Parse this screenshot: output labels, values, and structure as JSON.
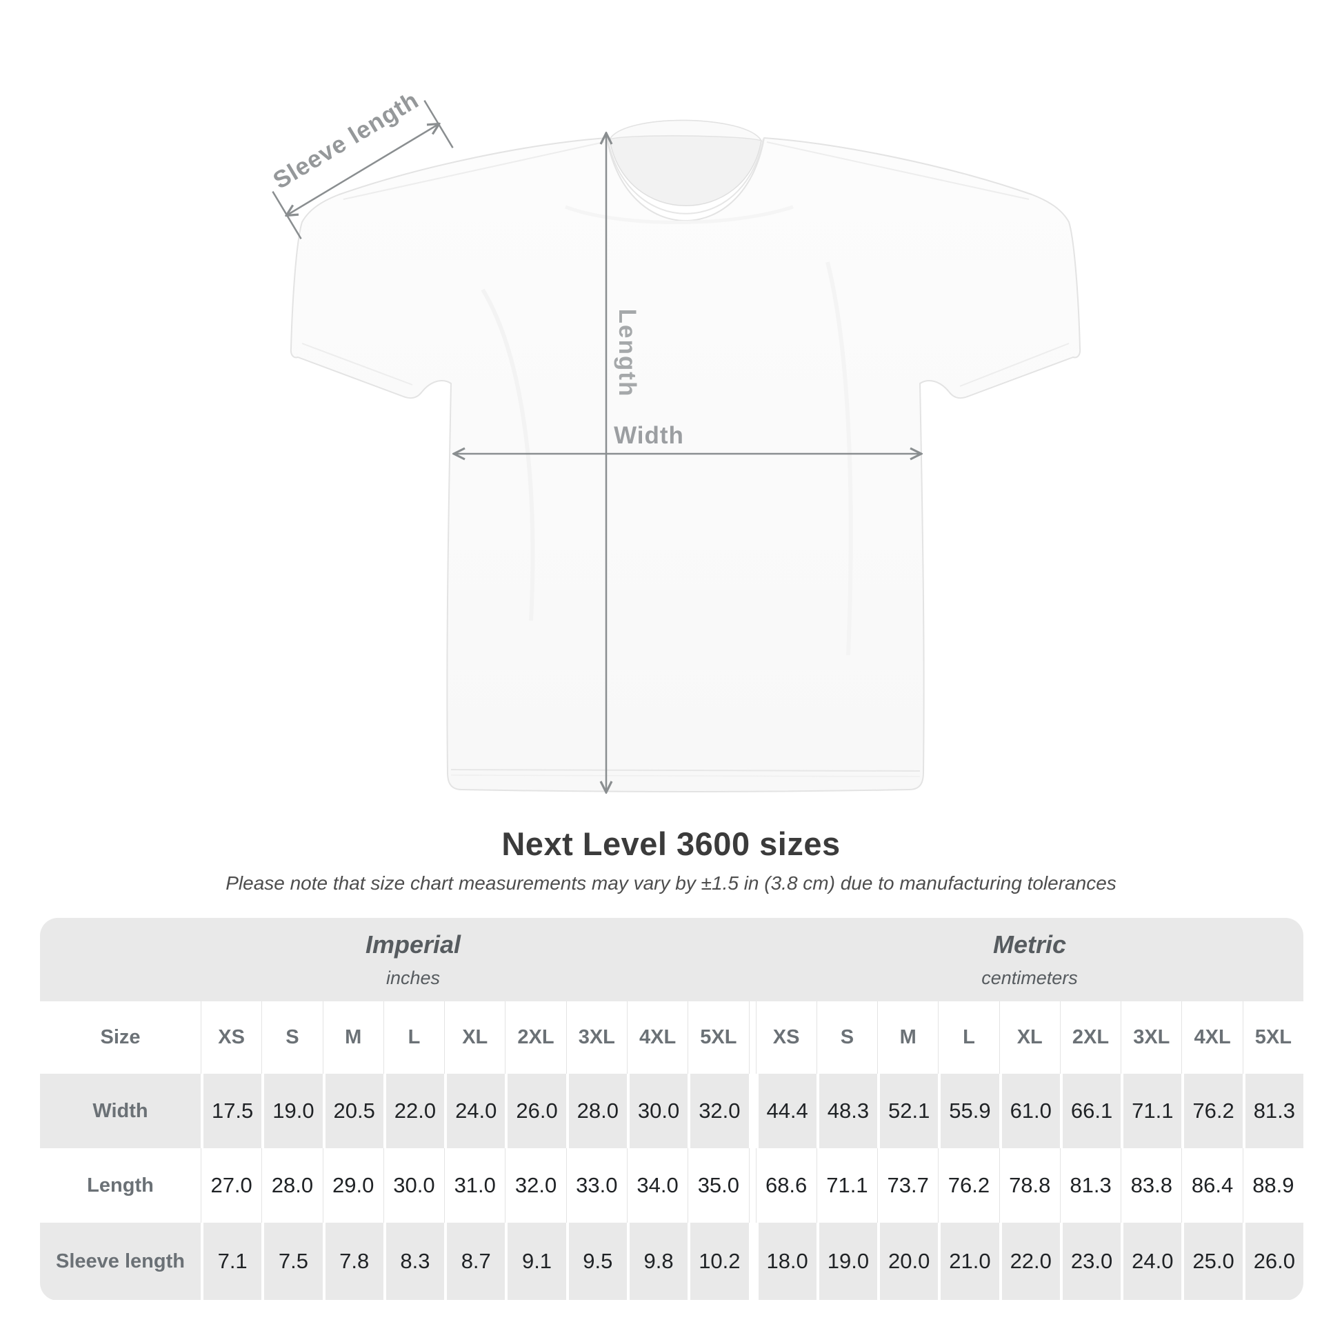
{
  "diagram": {
    "sleeve_label": "Sleeve length",
    "length_label": "Length",
    "width_label": "Width"
  },
  "title": "Next Level 3600 sizes",
  "subtitle": "Please note that size chart measurements may vary by ±1.5 in (3.8 cm) due to manufacturing tolerances",
  "table": {
    "imperial": {
      "title": "Imperial",
      "unit": "inches"
    },
    "metric": {
      "title": "Metric",
      "unit": "centimeters"
    },
    "size_header": "Size",
    "sizes": [
      "XS",
      "S",
      "M",
      "L",
      "XL",
      "2XL",
      "3XL",
      "4XL",
      "5XL",
      "XS",
      "S",
      "M",
      "L",
      "XL",
      "2XL",
      "3XL",
      "4XL",
      "5XL"
    ],
    "rows": [
      {
        "label": "Width",
        "values": [
          "17.5",
          "19.0",
          "20.5",
          "22.0",
          "24.0",
          "26.0",
          "28.0",
          "30.0",
          "32.0",
          "44.4",
          "48.3",
          "52.1",
          "55.9",
          "61.0",
          "66.1",
          "71.1",
          "76.2",
          "81.3"
        ]
      },
      {
        "label": "Length",
        "values": [
          "27.0",
          "28.0",
          "29.0",
          "30.0",
          "31.0",
          "32.0",
          "33.0",
          "34.0",
          "35.0",
          "68.6",
          "71.1",
          "73.7",
          "76.2",
          "78.8",
          "81.3",
          "83.8",
          "86.4",
          "88.9"
        ]
      },
      {
        "label": "Sleeve length",
        "values": [
          "7.1",
          "7.5",
          "7.8",
          "8.3",
          "8.7",
          "9.1",
          "9.5",
          "9.8",
          "10.2",
          "18.0",
          "19.0",
          "20.0",
          "21.0",
          "22.0",
          "23.0",
          "24.0",
          "25.0",
          "26.0"
        ]
      }
    ]
  },
  "colors": {
    "table_stripe": "#e9e9e9",
    "annotation_gray": "#8a8e90",
    "title_text": "#3b3b3b"
  }
}
